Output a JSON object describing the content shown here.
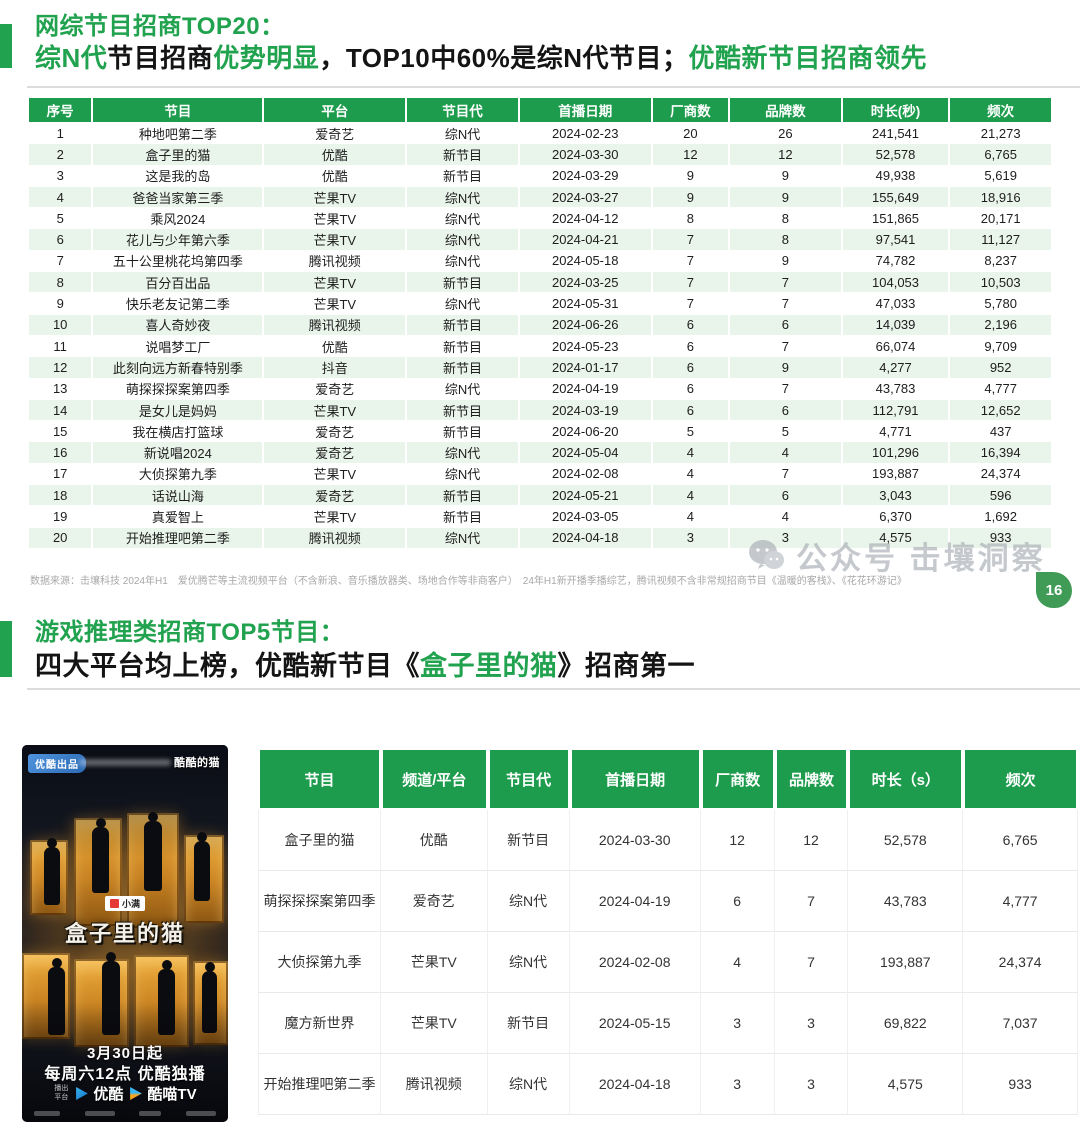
{
  "page": {
    "badge_number": "16",
    "watermark_text": "公众号  击壤洞察"
  },
  "section1": {
    "title": "网综节目招商TOP20：",
    "subtitle_parts": [
      {
        "text": "综N代",
        "green": true
      },
      {
        "text": "节目招商",
        "green": false
      },
      {
        "text": "优势明显",
        "green": true
      },
      {
        "text": "，TOP10中60%是综N代节目；",
        "green": false
      },
      {
        "text": "优酷新节目招商领先",
        "green": true
      }
    ],
    "table": {
      "headers": [
        "序号",
        "节目",
        "平台",
        "节目代",
        "首播日期",
        "厂商数",
        "品牌数",
        "时长(秒)",
        "频次"
      ],
      "rows": [
        [
          "1",
          "种地吧第二季",
          "爱奇艺",
          "综N代",
          "2024-02-23",
          "20",
          "26",
          "241,541",
          "21,273"
        ],
        [
          "2",
          "盒子里的猫",
          "优酷",
          "新节目",
          "2024-03-30",
          "12",
          "12",
          "52,578",
          "6,765"
        ],
        [
          "3",
          "这是我的岛",
          "优酷",
          "新节目",
          "2024-03-29",
          "9",
          "9",
          "49,938",
          "5,619"
        ],
        [
          "4",
          "爸爸当家第三季",
          "芒果TV",
          "综N代",
          "2024-03-27",
          "9",
          "9",
          "155,649",
          "18,916"
        ],
        [
          "5",
          "乘风2024",
          "芒果TV",
          "综N代",
          "2024-04-12",
          "8",
          "8",
          "151,865",
          "20,171"
        ],
        [
          "6",
          "花儿与少年第六季",
          "芒果TV",
          "综N代",
          "2024-04-21",
          "7",
          "8",
          "97,541",
          "11,127"
        ],
        [
          "7",
          "五十公里桃花坞第四季",
          "腾讯视频",
          "综N代",
          "2024-05-18",
          "7",
          "9",
          "74,782",
          "8,237"
        ],
        [
          "8",
          "百分百出品",
          "芒果TV",
          "新节目",
          "2024-03-25",
          "7",
          "7",
          "104,053",
          "10,503"
        ],
        [
          "9",
          "快乐老友记第二季",
          "芒果TV",
          "综N代",
          "2024-05-31",
          "7",
          "7",
          "47,033",
          "5,780"
        ],
        [
          "10",
          "喜人奇妙夜",
          "腾讯视频",
          "新节目",
          "2024-06-26",
          "6",
          "6",
          "14,039",
          "2,196"
        ],
        [
          "11",
          "说唱梦工厂",
          "优酷",
          "新节目",
          "2024-05-23",
          "6",
          "7",
          "66,074",
          "9,709"
        ],
        [
          "12",
          "此刻向远方新春特别季",
          "抖音",
          "新节目",
          "2024-01-17",
          "6",
          "9",
          "4,277",
          "952"
        ],
        [
          "13",
          "萌探探探案第四季",
          "爱奇艺",
          "综N代",
          "2024-04-19",
          "6",
          "7",
          "43,783",
          "4,777"
        ],
        [
          "14",
          "是女儿是妈妈",
          "芒果TV",
          "新节目",
          "2024-03-19",
          "6",
          "6",
          "112,791",
          "12,652"
        ],
        [
          "15",
          "我在横店打篮球",
          "爱奇艺",
          "新节目",
          "2024-06-20",
          "5",
          "5",
          "4,771",
          "437"
        ],
        [
          "16",
          "新说唱2024",
          "爱奇艺",
          "综N代",
          "2024-05-04",
          "4",
          "4",
          "101,296",
          "16,394"
        ],
        [
          "17",
          "大侦探第九季",
          "芒果TV",
          "综N代",
          "2024-02-08",
          "4",
          "7",
          "193,887",
          "24,374"
        ],
        [
          "18",
          "话说山海",
          "爱奇艺",
          "新节目",
          "2024-05-21",
          "4",
          "6",
          "3,043",
          "596"
        ],
        [
          "19",
          "真爱智上",
          "芒果TV",
          "新节目",
          "2024-03-05",
          "4",
          "4",
          "6,370",
          "1,692"
        ],
        [
          "20",
          "开始推理吧第二季",
          "腾讯视频",
          "综N代",
          "2024-04-18",
          "3",
          "3",
          "4,575",
          "933"
        ]
      ]
    },
    "footnote": "数据来源：击壤科技 2024年H1　爱优腾芒等主流视频平台（不含新浪、音乐播放器类、场地合作等非商客户）　24年H1新开播季播综艺，腾讯视频不含非常规招商节目《温暖的客栈》、《花花环游记》"
  },
  "section2": {
    "title": "游戏推理类招商TOP5节目：",
    "subtitle_parts": [
      {
        "text": "四大平台均上榜，优酷新节目《",
        "green": false
      },
      {
        "text": "盒子里的猫",
        "green": true
      },
      {
        "text": "》招商第一",
        "green": false
      }
    ],
    "table": {
      "headers": [
        "节目",
        "频道/平台",
        "节目代",
        "首播日期",
        "厂商数",
        "品牌数",
        "时长（s）",
        "频次"
      ],
      "rows": [
        [
          "盒子里的猫",
          "优酷",
          "新节目",
          "2024-03-30",
          "12",
          "12",
          "52,578",
          "6,765"
        ],
        [
          "萌探探探案第四季",
          "爱奇艺",
          "综N代",
          "2024-04-19",
          "6",
          "7",
          "43,783",
          "4,777"
        ],
        [
          "大侦探第九季",
          "芒果TV",
          "综N代",
          "2024-02-08",
          "4",
          "7",
          "193,887",
          "24,374"
        ],
        [
          "魔方新世界",
          "芒果TV",
          "新节目",
          "2024-05-15",
          "3",
          "3",
          "69,822",
          "7,037"
        ],
        [
          "开始推理吧第二季",
          "腾讯视频",
          "综N代",
          "2024-04-18",
          "3",
          "3",
          "4,575",
          "933"
        ]
      ]
    },
    "poster": {
      "producer_badge": "优酷出品",
      "brand_logo": "酷酷的猫",
      "sponsor_logo": "小满",
      "title": "盒子里的猫",
      "date_line": "3月30日起",
      "schedule_line": "每周六12点 优酷独播",
      "platform_label_1": "播出",
      "platform_label_2": "平台",
      "platforms": [
        "优酷",
        "酷喵TV"
      ]
    }
  },
  "colors": {
    "accent_green": "#21a24e",
    "table_header_green": "#1e9c4d",
    "alt_row_green": "#e9f4ea",
    "badge_green": "#3f9b55",
    "youku_blue": "#2c69b4"
  }
}
